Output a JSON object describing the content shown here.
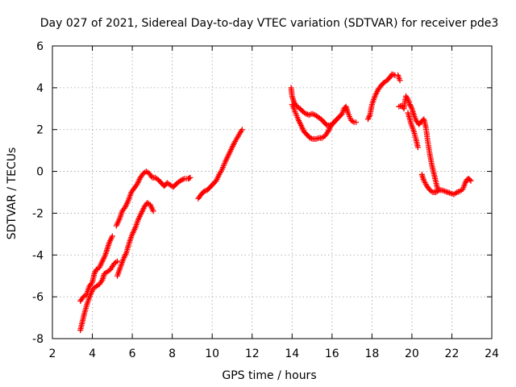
{
  "chart_data": {
    "type": "scatter",
    "title": "Day 027 of 2021, Sidereal Day-to-day VTEC variation (SDTVAR) for receiver pde3",
    "xlabel": "GPS time / hours",
    "ylabel": "SDTVAR / TECUs",
    "xlim": [
      2,
      24
    ],
    "ylim": [
      -8,
      6
    ],
    "xticks": [
      "2",
      "4",
      "6",
      "8",
      "10",
      "12",
      "14",
      "16",
      "18",
      "20",
      "22",
      "24"
    ],
    "yticks": [
      "-8",
      "-6",
      "-4",
      "-2",
      "0",
      "2",
      "4",
      "6"
    ],
    "grid": true,
    "marker": "+",
    "series": [
      {
        "name": "SDTVAR",
        "color": "#ff0000",
        "segments": [
          [
            [
              3.4,
              -7.6
            ],
            [
              3.5,
              -7.2
            ],
            [
              3.6,
              -6.8
            ],
            [
              3.75,
              -6.3
            ],
            [
              3.9,
              -5.9
            ],
            [
              4.05,
              -5.6
            ],
            [
              4.2,
              -5.5
            ],
            [
              4.35,
              -5.4
            ],
            [
              4.5,
              -5.2
            ],
            [
              4.6,
              -4.9
            ],
            [
              4.75,
              -4.8
            ],
            [
              4.9,
              -4.7
            ],
            [
              5.1,
              -4.4
            ],
            [
              5.25,
              -4.3
            ]
          ],
          [
            [
              5.25,
              -5.0
            ],
            [
              5.4,
              -4.6
            ],
            [
              5.55,
              -4.2
            ],
            [
              5.7,
              -3.9
            ],
            [
              5.85,
              -3.4
            ],
            [
              6.0,
              -3.0
            ],
            [
              6.15,
              -2.7
            ],
            [
              6.3,
              -2.3
            ],
            [
              6.45,
              -2.0
            ],
            [
              6.6,
              -1.7
            ],
            [
              6.75,
              -1.5
            ],
            [
              6.9,
              -1.6
            ],
            [
              7.05,
              -1.9
            ]
          ],
          [
            [
              3.4,
              -6.2
            ],
            [
              3.55,
              -6.0
            ],
            [
              3.7,
              -5.9
            ],
            [
              3.85,
              -5.5
            ],
            [
              4.0,
              -5.3
            ],
            [
              4.1,
              -4.9
            ],
            [
              4.2,
              -4.7
            ],
            [
              4.35,
              -4.6
            ],
            [
              4.5,
              -4.3
            ],
            [
              4.65,
              -4.0
            ],
            [
              4.75,
              -3.7
            ],
            [
              4.85,
              -3.4
            ],
            [
              5.0,
              -3.1
            ]
          ],
          [
            [
              5.2,
              -2.6
            ],
            [
              5.35,
              -2.3
            ],
            [
              5.5,
              -1.9
            ],
            [
              5.65,
              -1.7
            ],
            [
              5.8,
              -1.4
            ],
            [
              5.95,
              -1.0
            ],
            [
              6.1,
              -0.8
            ],
            [
              6.25,
              -0.6
            ],
            [
              6.4,
              -0.3
            ],
            [
              6.55,
              -0.1
            ],
            [
              6.7,
              0.0
            ],
            [
              6.85,
              -0.1
            ],
            [
              7.0,
              -0.3
            ],
            [
              7.15,
              -0.3
            ],
            [
              7.3,
              -0.4
            ],
            [
              7.45,
              -0.55
            ],
            [
              7.6,
              -0.7
            ],
            [
              7.75,
              -0.55
            ],
            [
              7.9,
              -0.65
            ],
            [
              8.05,
              -0.75
            ],
            [
              8.2,
              -0.6
            ],
            [
              8.4,
              -0.45
            ],
            [
              8.6,
              -0.35
            ],
            [
              8.8,
              -0.35
            ],
            [
              8.9,
              -0.3
            ]
          ],
          [
            [
              9.3,
              -1.3
            ],
            [
              9.45,
              -1.1
            ],
            [
              9.6,
              -0.95
            ],
            [
              9.75,
              -0.9
            ],
            [
              9.9,
              -0.75
            ],
            [
              10.05,
              -0.6
            ],
            [
              10.2,
              -0.45
            ],
            [
              10.35,
              -0.15
            ],
            [
              10.5,
              0.1
            ],
            [
              10.65,
              0.45
            ],
            [
              10.8,
              0.75
            ],
            [
              10.95,
              1.05
            ],
            [
              11.1,
              1.35
            ],
            [
              11.25,
              1.6
            ],
            [
              11.4,
              1.85
            ],
            [
              11.5,
              2.0
            ]
          ],
          [
            [
              13.95,
              4.0
            ],
            [
              14.0,
              3.6
            ],
            [
              14.1,
              3.3
            ],
            [
              14.25,
              3.1
            ],
            [
              14.4,
              3.0
            ],
            [
              14.55,
              2.85
            ],
            [
              14.7,
              2.75
            ],
            [
              14.85,
              2.7
            ],
            [
              15.0,
              2.75
            ],
            [
              15.15,
              2.7
            ],
            [
              15.3,
              2.6
            ],
            [
              15.45,
              2.5
            ],
            [
              15.6,
              2.35
            ],
            [
              15.75,
              2.2
            ],
            [
              15.9,
              2.2
            ],
            [
              16.05,
              2.3
            ],
            [
              16.2,
              2.45
            ],
            [
              16.35,
              2.6
            ],
            [
              16.5,
              2.75
            ],
            [
              16.6,
              3.0
            ],
            [
              16.7,
              3.1
            ],
            [
              16.8,
              2.8
            ],
            [
              16.95,
              2.45
            ],
            [
              17.1,
              2.35
            ],
            [
              17.2,
              2.35
            ]
          ],
          [
            [
              14.0,
              3.2
            ],
            [
              14.15,
              2.85
            ],
            [
              14.3,
              2.5
            ],
            [
              14.45,
              2.2
            ],
            [
              14.6,
              1.9
            ],
            [
              14.75,
              1.75
            ],
            [
              14.9,
              1.6
            ],
            [
              15.05,
              1.55
            ],
            [
              15.2,
              1.55
            ],
            [
              15.35,
              1.6
            ],
            [
              15.5,
              1.6
            ],
            [
              15.65,
              1.7
            ],
            [
              15.8,
              1.9
            ],
            [
              15.9,
              2.1
            ],
            [
              16.05,
              2.3
            ],
            [
              16.2,
              2.45
            ]
          ],
          [
            [
              17.8,
              2.5
            ],
            [
              17.9,
              2.7
            ],
            [
              18.0,
              3.2
            ],
            [
              18.15,
              3.6
            ],
            [
              18.3,
              3.9
            ],
            [
              18.45,
              4.1
            ],
            [
              18.6,
              4.25
            ],
            [
              18.75,
              4.35
            ],
            [
              18.9,
              4.5
            ],
            [
              19.0,
              4.65
            ],
            [
              19.15,
              4.6
            ]
          ],
          [
            [
              19.3,
              4.6
            ],
            [
              19.4,
              4.35
            ]
          ],
          [
            [
              19.35,
              3.1
            ],
            [
              19.5,
              3.15
            ],
            [
              19.6,
              3.0
            ],
            [
              19.7,
              3.6
            ],
            [
              19.8,
              3.45
            ],
            [
              19.9,
              3.2
            ],
            [
              20.0,
              3.0
            ],
            [
              20.1,
              2.7
            ],
            [
              20.2,
              2.45
            ],
            [
              20.35,
              2.25
            ],
            [
              20.45,
              2.35
            ],
            [
              20.6,
              2.5
            ],
            [
              20.7,
              2.1
            ],
            [
              20.8,
              1.4
            ],
            [
              20.9,
              0.8
            ],
            [
              21.0,
              0.3
            ],
            [
              21.1,
              -0.1
            ],
            [
              21.2,
              -0.5
            ],
            [
              21.3,
              -0.9
            ]
          ],
          [
            [
              19.8,
              2.8
            ],
            [
              19.95,
              2.3
            ],
            [
              20.1,
              1.9
            ],
            [
              20.2,
              1.55
            ],
            [
              20.3,
              1.15
            ]
          ],
          [
            [
              20.5,
              -0.15
            ],
            [
              20.6,
              -0.45
            ],
            [
              20.75,
              -0.7
            ],
            [
              20.9,
              -0.9
            ],
            [
              21.05,
              -1.0
            ],
            [
              21.2,
              -1.0
            ],
            [
              21.35,
              -0.9
            ],
            [
              21.5,
              -0.9
            ],
            [
              21.65,
              -0.95
            ],
            [
              21.8,
              -1.0
            ],
            [
              21.95,
              -1.05
            ],
            [
              22.1,
              -1.1
            ],
            [
              22.25,
              -1.0
            ],
            [
              22.4,
              -0.95
            ],
            [
              22.55,
              -0.85
            ],
            [
              22.65,
              -0.6
            ],
            [
              22.75,
              -0.4
            ],
            [
              22.85,
              -0.35
            ],
            [
              22.95,
              -0.45
            ]
          ]
        ]
      }
    ]
  }
}
